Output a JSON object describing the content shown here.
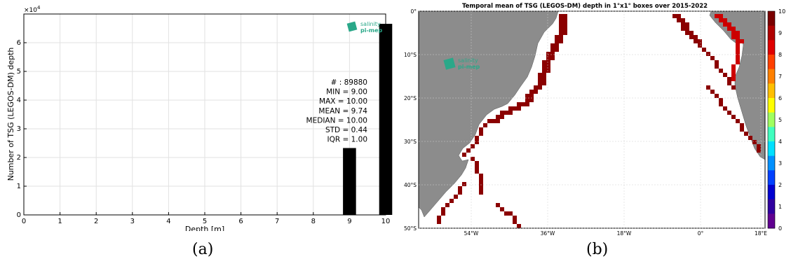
{
  "panel_a": {
    "caption": "(a)",
    "exponent_label": "×10",
    "exponent_power": "4",
    "logo": {
      "line1": "salinity",
      "line2": "pi-mep"
    },
    "stats": [
      "# : 89880",
      "MIN = 9.00",
      "MAX =  10.00",
      "MEAN = 9.74",
      "MEDIAN = 10.00",
      "STD = 0.44",
      "IQR = 1.00"
    ],
    "chart_data": {
      "type": "bar",
      "xlabel": "Depth [m]",
      "ylabel": "Number of TSG (LEGOS-DM) depth",
      "xlim": [
        0,
        10
      ],
      "ylim": [
        0,
        70000
      ],
      "grid": true,
      "xticks": [
        "0",
        "1",
        "2",
        "3",
        "4",
        "5",
        "6",
        "7",
        "8",
        "9",
        "10"
      ],
      "yticks": [
        "0",
        "1",
        "2",
        "3",
        "4",
        "5",
        "6"
      ],
      "bars": [
        {
          "x": 9,
          "value": 23300
        },
        {
          "x": 10,
          "value": 66580
        }
      ]
    }
  },
  "panel_b": {
    "caption": "(b)",
    "title": "Temporal mean of TSG (LEGOS-DM) depth in 1°x1° boxes over 2015-2022",
    "logo": {
      "line1": "salinity",
      "line2": "pi-mep"
    },
    "lat_ticks": [
      "0°",
      "10°S",
      "20°S",
      "30°S",
      "40°S",
      "50°S"
    ],
    "lon_ticks": [
      "54°W",
      "36°W",
      "18°W",
      "0°",
      "18°E"
    ],
    "colorbar_ticks": [
      "0",
      "1",
      "2",
      "3",
      "4",
      "5",
      "6",
      "7",
      "8",
      "9",
      "10"
    ],
    "colors": {
      "land": "#8c8c8c",
      "ocean": "#ffffff",
      "track_dark": "#8b0000",
      "track_red": "#cc0000"
    }
  }
}
